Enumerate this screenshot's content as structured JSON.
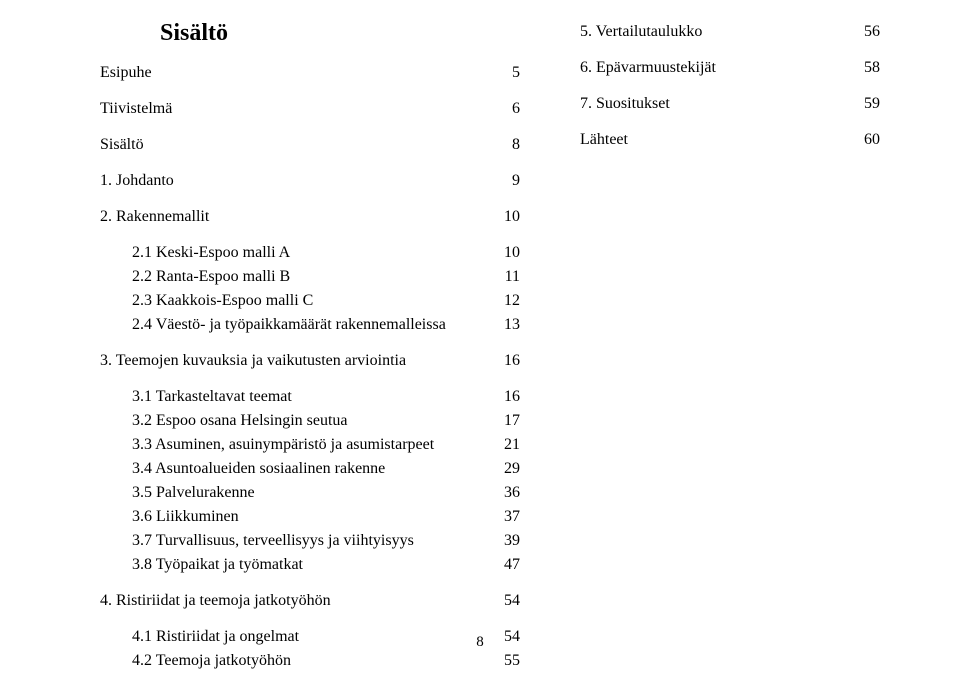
{
  "title": "Sisältö",
  "page_number": "8",
  "left_entries": [
    {
      "label": "Esipuhe",
      "page": "5",
      "cls": ""
    },
    {
      "gap": true
    },
    {
      "label": "Tiivistelmä",
      "page": "6",
      "cls": ""
    },
    {
      "gap": true
    },
    {
      "label": "Sisältö",
      "page": "8",
      "cls": ""
    },
    {
      "gap": true
    },
    {
      "label": "1. Johdanto",
      "page": "9",
      "cls": ""
    },
    {
      "gap": true
    },
    {
      "label": "2. Rakennemallit",
      "page": "10",
      "cls": ""
    },
    {
      "gap": true
    },
    {
      "label": "2.1 Keski-Espoo malli A",
      "page": "10",
      "cls": "sub"
    },
    {
      "label": "2.2 Ranta-Espoo malli B",
      "page": "11",
      "cls": "sub"
    },
    {
      "label": "2.3 Kaakkois-Espoo malli C",
      "page": "12",
      "cls": "sub"
    },
    {
      "label": "2.4 Väestö- ja työpaikkamäärät rakennemalleissa",
      "page": "13",
      "cls": "sub"
    },
    {
      "gap": true
    },
    {
      "label": "3. Teemojen kuvauksia ja vaikutusten arviointia",
      "page": "16",
      "cls": ""
    },
    {
      "gap": true
    },
    {
      "label": "3.1 Tarkasteltavat teemat",
      "page": "16",
      "cls": "sub"
    },
    {
      "label": "3.2 Espoo osana Helsingin seutua",
      "page": "17",
      "cls": "sub"
    },
    {
      "label": "3.3 Asuminen, asuinympäristö ja asumistarpeet",
      "page": "21",
      "cls": "sub"
    },
    {
      "label": "3.4 Asuntoalueiden sosiaalinen rakenne",
      "page": "29",
      "cls": "sub"
    },
    {
      "label": "3.5 Palvelurakenne",
      "page": "36",
      "cls": "sub"
    },
    {
      "label": "3.6 Liikkuminen",
      "page": "37",
      "cls": "sub"
    },
    {
      "label": "3.7 Turvallisuus, terveellisyys ja viihtyisyys",
      "page": "39",
      "cls": "sub"
    },
    {
      "label": "3.8 Työpaikat ja työmatkat",
      "page": "47",
      "cls": "sub"
    },
    {
      "gap": true
    },
    {
      "label": "4. Ristiriidat ja teemoja jatkotyöhön",
      "page": "54",
      "cls": ""
    },
    {
      "gap": true
    },
    {
      "label": "4.1 Ristiriidat ja ongelmat",
      "page": "54",
      "cls": "sub"
    },
    {
      "label": "4.2 Teemoja jatkotyöhön",
      "page": "55",
      "cls": "sub"
    }
  ],
  "right_entries": [
    {
      "label": "5. Vertailutaulukko",
      "page": "56",
      "cls": ""
    },
    {
      "gap": true
    },
    {
      "label": "6. Epävarmuustekijät",
      "page": "58",
      "cls": ""
    },
    {
      "gap": true
    },
    {
      "label": "7. Suositukset",
      "page": "59",
      "cls": ""
    },
    {
      "gap": true
    },
    {
      "label": "Lähteet",
      "page": "60",
      "cls": ""
    }
  ]
}
